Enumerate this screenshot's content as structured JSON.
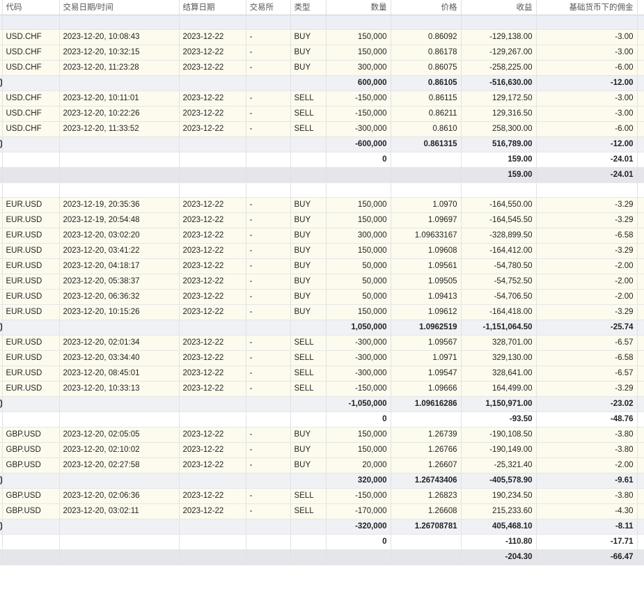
{
  "headers": [
    "代码",
    "交易日期/时间",
    "结算日期",
    "交易所",
    "类型",
    "数量",
    "价格",
    "收益",
    "基础货币下的佣金"
  ],
  "rows": [
    {
      "kind": "blank",
      "cells": [
        "",
        "",
        "",
        "",
        "",
        "",
        "",
        "",
        "",
        ""
      ]
    },
    {
      "kind": "trade",
      "cells": [
        "",
        "USD.CHF",
        "2023-12-20, 10:08:43",
        "2023-12-22",
        "-",
        "BUY",
        "150,000",
        "0.86092",
        "-129,138.00",
        "-3.00"
      ]
    },
    {
      "kind": "trade",
      "cells": [
        "",
        "USD.CHF",
        "2023-12-20, 10:32:15",
        "2023-12-22",
        "-",
        "BUY",
        "150,000",
        "0.86178",
        "-129,267.00",
        "-3.00"
      ]
    },
    {
      "kind": "trade",
      "cells": [
        "",
        "USD.CHF",
        "2023-12-20, 11:23:28",
        "2023-12-22",
        "-",
        "BUY",
        "300,000",
        "0.86075",
        "-258,225.00",
        "-6.00"
      ]
    },
    {
      "kind": "sub",
      "cells": [
        ")",
        "",
        "",
        "",
        "",
        "",
        "600,000",
        "0.86105",
        "-516,630.00",
        "-12.00"
      ]
    },
    {
      "kind": "trade",
      "cells": [
        "",
        "USD.CHF",
        "2023-12-20, 10:11:01",
        "2023-12-22",
        "-",
        "SELL",
        "-150,000",
        "0.86115",
        "129,172.50",
        "-3.00"
      ]
    },
    {
      "kind": "trade",
      "cells": [
        "",
        "USD.CHF",
        "2023-12-20, 10:22:26",
        "2023-12-22",
        "-",
        "SELL",
        "-150,000",
        "0.86211",
        "129,316.50",
        "-3.00"
      ]
    },
    {
      "kind": "trade",
      "cells": [
        "",
        "USD.CHF",
        "2023-12-20, 11:33:52",
        "2023-12-22",
        "-",
        "SELL",
        "-300,000",
        "0.8610",
        "258,300.00",
        "-6.00"
      ]
    },
    {
      "kind": "sub",
      "cells": [
        ")",
        "",
        "",
        "",
        "",
        "",
        "-600,000",
        "0.861315",
        "516,789.00",
        "-12.00"
      ]
    },
    {
      "kind": "net",
      "cells": [
        "",
        "",
        "",
        "",
        "",
        "",
        "0",
        "",
        "159.00",
        "-24.01"
      ]
    },
    {
      "kind": "total",
      "cells": [
        "",
        "",
        "",
        "",
        "",
        "",
        "",
        "",
        "159.00",
        "-24.01"
      ]
    },
    {
      "kind": "blank2",
      "cells": [
        "",
        "",
        "",
        "",
        "",
        "",
        "",
        "",
        "",
        ""
      ]
    },
    {
      "kind": "trade",
      "cells": [
        "",
        "EUR.USD",
        "2023-12-19, 20:35:36",
        "2023-12-22",
        "-",
        "BUY",
        "150,000",
        "1.0970",
        "-164,550.00",
        "-3.29"
      ]
    },
    {
      "kind": "trade",
      "cells": [
        "",
        "EUR.USD",
        "2023-12-19, 20:54:48",
        "2023-12-22",
        "-",
        "BUY",
        "150,000",
        "1.09697",
        "-164,545.50",
        "-3.29"
      ]
    },
    {
      "kind": "trade",
      "cells": [
        "",
        "EUR.USD",
        "2023-12-20, 03:02:20",
        "2023-12-22",
        "-",
        "BUY",
        "300,000",
        "1.09633167",
        "-328,899.50",
        "-6.58"
      ]
    },
    {
      "kind": "trade",
      "cells": [
        "",
        "EUR.USD",
        "2023-12-20, 03:41:22",
        "2023-12-22",
        "-",
        "BUY",
        "150,000",
        "1.09608",
        "-164,412.00",
        "-3.29"
      ]
    },
    {
      "kind": "trade",
      "cells": [
        "",
        "EUR.USD",
        "2023-12-20, 04:18:17",
        "2023-12-22",
        "-",
        "BUY",
        "50,000",
        "1.09561",
        "-54,780.50",
        "-2.00"
      ]
    },
    {
      "kind": "trade",
      "cells": [
        "",
        "EUR.USD",
        "2023-12-20, 05:38:37",
        "2023-12-22",
        "-",
        "BUY",
        "50,000",
        "1.09505",
        "-54,752.50",
        "-2.00"
      ]
    },
    {
      "kind": "trade",
      "cells": [
        "",
        "EUR.USD",
        "2023-12-20, 06:36:32",
        "2023-12-22",
        "-",
        "BUY",
        "50,000",
        "1.09413",
        "-54,706.50",
        "-2.00"
      ]
    },
    {
      "kind": "trade",
      "cells": [
        "",
        "EUR.USD",
        "2023-12-20, 10:15:26",
        "2023-12-22",
        "-",
        "BUY",
        "150,000",
        "1.09612",
        "-164,418.00",
        "-3.29"
      ]
    },
    {
      "kind": "sub",
      "cells": [
        ")",
        "",
        "",
        "",
        "",
        "",
        "1,050,000",
        "1.0962519",
        "-1,151,064.50",
        "-25.74"
      ]
    },
    {
      "kind": "trade",
      "cells": [
        "",
        "EUR.USD",
        "2023-12-20, 02:01:34",
        "2023-12-22",
        "-",
        "SELL",
        "-300,000",
        "1.09567",
        "328,701.00",
        "-6.57"
      ]
    },
    {
      "kind": "trade",
      "cells": [
        "",
        "EUR.USD",
        "2023-12-20, 03:34:40",
        "2023-12-22",
        "-",
        "SELL",
        "-300,000",
        "1.0971",
        "329,130.00",
        "-6.58"
      ]
    },
    {
      "kind": "trade",
      "cells": [
        "",
        "EUR.USD",
        "2023-12-20, 08:45:01",
        "2023-12-22",
        "-",
        "SELL",
        "-300,000",
        "1.09547",
        "328,641.00",
        "-6.57"
      ]
    },
    {
      "kind": "trade",
      "cells": [
        "",
        "EUR.USD",
        "2023-12-20, 10:33:13",
        "2023-12-22",
        "-",
        "SELL",
        "-150,000",
        "1.09666",
        "164,499.00",
        "-3.29"
      ]
    },
    {
      "kind": "sub",
      "cells": [
        ")",
        "",
        "",
        "",
        "",
        "",
        "-1,050,000",
        "1.09616286",
        "1,150,971.00",
        "-23.02"
      ]
    },
    {
      "kind": "net",
      "cells": [
        "",
        "",
        "",
        "",
        "",
        "",
        "0",
        "",
        "-93.50",
        "-48.76"
      ]
    },
    {
      "kind": "trade",
      "cells": [
        "",
        "GBP.USD",
        "2023-12-20, 02:05:05",
        "2023-12-22",
        "-",
        "BUY",
        "150,000",
        "1.26739",
        "-190,108.50",
        "-3.80"
      ]
    },
    {
      "kind": "trade",
      "cells": [
        "",
        "GBP.USD",
        "2023-12-20, 02:10:02",
        "2023-12-22",
        "-",
        "BUY",
        "150,000",
        "1.26766",
        "-190,149.00",
        "-3.80"
      ]
    },
    {
      "kind": "trade",
      "cells": [
        "",
        "GBP.USD",
        "2023-12-20, 02:27:58",
        "2023-12-22",
        "-",
        "BUY",
        "20,000",
        "1.26607",
        "-25,321.40",
        "-2.00"
      ]
    },
    {
      "kind": "sub",
      "cells": [
        ")",
        "",
        "",
        "",
        "",
        "",
        "320,000",
        "1.26743406",
        "-405,578.90",
        "-9.61"
      ]
    },
    {
      "kind": "trade",
      "cells": [
        "",
        "GBP.USD",
        "2023-12-20, 02:06:36",
        "2023-12-22",
        "-",
        "SELL",
        "-150,000",
        "1.26823",
        "190,234.50",
        "-3.80"
      ]
    },
    {
      "kind": "trade",
      "cells": [
        "",
        "GBP.USD",
        "2023-12-20, 03:02:11",
        "2023-12-22",
        "-",
        "SELL",
        "-170,000",
        "1.26608",
        "215,233.60",
        "-4.30"
      ]
    },
    {
      "kind": "sub",
      "cells": [
        ")",
        "",
        "",
        "",
        "",
        "",
        "-320,000",
        "1.26708781",
        "405,468.10",
        "-8.11"
      ]
    },
    {
      "kind": "net",
      "cells": [
        "",
        "",
        "",
        "",
        "",
        "",
        "0",
        "",
        "-110.80",
        "-17.71"
      ]
    },
    {
      "kind": "total",
      "cells": [
        "",
        "",
        "",
        "",
        "",
        "",
        "",
        "",
        "-204.30",
        "-66.47"
      ]
    }
  ]
}
